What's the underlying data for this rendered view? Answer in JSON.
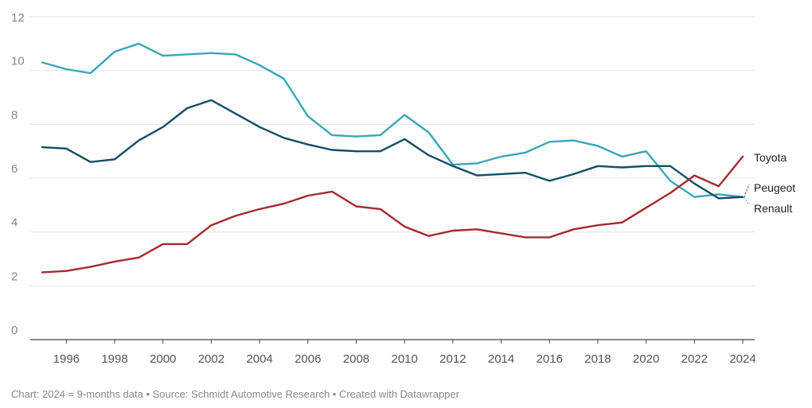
{
  "chart_data": {
    "type": "line",
    "title": "",
    "xlabel": "",
    "ylabel": "",
    "ylim": [
      0,
      12
    ],
    "xlim": [
      1995,
      2024
    ],
    "y_ticks": [
      "0",
      "2",
      "4",
      "6",
      "8",
      "10",
      "12"
    ],
    "x_ticks": [
      "1996",
      "1998",
      "2000",
      "2002",
      "2004",
      "2006",
      "2008",
      "2010",
      "2012",
      "2014",
      "2016",
      "2018",
      "2020",
      "2022",
      "2024"
    ],
    "grid": true,
    "x": [
      1995,
      1996,
      1997,
      1998,
      1999,
      2000,
      2001,
      2002,
      2003,
      2004,
      2005,
      2006,
      2007,
      2008,
      2009,
      2010,
      2011,
      2012,
      2013,
      2014,
      2015,
      2016,
      2017,
      2018,
      2019,
      2020,
      2021,
      2022,
      2023,
      2024
    ],
    "series": [
      {
        "name": "Renault",
        "color": "#3aa6b9",
        "values": [
          10.3,
          10.05,
          9.9,
          10.7,
          11.0,
          10.55,
          10.6,
          10.65,
          10.6,
          10.2,
          9.7,
          8.3,
          7.6,
          7.55,
          7.6,
          8.35,
          7.7,
          6.5,
          6.55,
          6.8,
          6.95,
          7.35,
          7.4,
          7.2,
          6.8,
          7.0,
          5.9,
          5.3,
          5.4,
          5.3
        ]
      },
      {
        "name": "Peugeot",
        "color": "#124e66",
        "values": [
          7.15,
          7.1,
          6.6,
          6.7,
          7.4,
          7.9,
          8.6,
          8.9,
          8.4,
          7.9,
          7.5,
          7.25,
          7.05,
          7.0,
          7.0,
          7.45,
          6.85,
          6.45,
          6.1,
          6.15,
          6.2,
          5.9,
          6.15,
          6.45,
          6.4,
          6.45,
          6.45,
          5.8,
          5.25,
          5.3
        ]
      },
      {
        "name": "Toyota",
        "color": "#a52a2f",
        "values": [
          2.5,
          2.55,
          2.7,
          2.9,
          3.05,
          3.55,
          3.55,
          4.25,
          4.6,
          4.85,
          5.05,
          5.35,
          5.5,
          4.95,
          4.85,
          4.2,
          3.85,
          4.05,
          4.1,
          3.95,
          3.8,
          3.8,
          4.1,
          4.25,
          4.35,
          4.9,
          5.45,
          6.1,
          5.7,
          6.8
        ]
      }
    ],
    "labels": [
      {
        "series": "Toyota",
        "text": "Toyota"
      },
      {
        "series": "Peugeot",
        "text": "Peugeot"
      },
      {
        "series": "Renault",
        "text": "Renault"
      }
    ]
  },
  "footer": "Chart: 2024 = 9-months data • Source: Schmidt Automotive Research  • Created with Datawrapper"
}
